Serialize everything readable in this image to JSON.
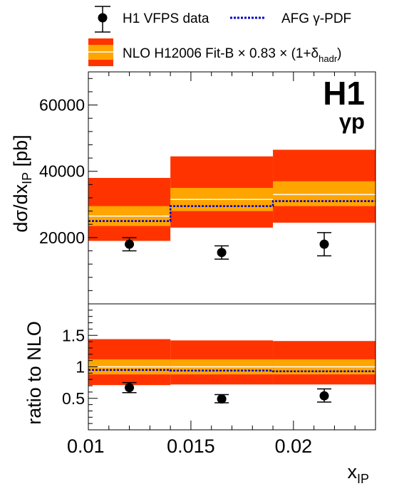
{
  "legend": {
    "data_label": "H1 VFPS data",
    "afg_label": "AFG γ-PDF",
    "nlo_label_main": "NLO H12006 Fit-B × 0.83 × (1+δ",
    "nlo_label_sub": "hadr",
    "nlo_label_close": ")"
  },
  "colors": {
    "band_outer": "#ff3300",
    "band_inner": "#ffa500",
    "central_line": "#ffffff",
    "afg_line": "#0000cc",
    "points": "#000000"
  },
  "chart_data": [
    {
      "type": "bar",
      "panel": "top",
      "brand": "H1",
      "process": "γp",
      "ylabel_main": "dσ/dx",
      "ylabel_sub": "IP",
      "ylabel_unit": " [pb]",
      "ylim": [
        0,
        70000
      ],
      "yticks": [
        {
          "v": 20000,
          "label": "20000"
        },
        {
          "v": 40000,
          "label": "40000"
        },
        {
          "v": 60000,
          "label": "60000"
        }
      ],
      "bins": [
        {
          "lo": 0.01,
          "hi": 0.014,
          "nlo": 26500,
          "scale_lo": 23500,
          "scale_hi": 29500,
          "tot_lo": 19000,
          "tot_hi": 38000,
          "afg": 25000
        },
        {
          "lo": 0.014,
          "hi": 0.019,
          "nlo": 31500,
          "scale_lo": 28000,
          "scale_hi": 35000,
          "tot_lo": 23000,
          "tot_hi": 44500,
          "afg": 29500
        },
        {
          "lo": 0.019,
          "hi": 0.024,
          "nlo": 33000,
          "scale_lo": 29500,
          "scale_hi": 37000,
          "tot_lo": 24500,
          "tot_hi": 46500,
          "afg": 31000
        }
      ],
      "points": [
        {
          "x": 0.012,
          "y": 18000,
          "err_lo": 16000,
          "err_hi": 20000
        },
        {
          "x": 0.0165,
          "y": 15500,
          "err_lo": 13500,
          "err_hi": 17500
        },
        {
          "x": 0.0215,
          "y": 18000,
          "err_lo": 14500,
          "err_hi": 21500
        }
      ]
    },
    {
      "type": "bar",
      "panel": "bottom",
      "ylabel": "ratio to NLO",
      "xlabel_main": "x",
      "xlabel_sub": "IP",
      "xlim": [
        0.01,
        0.024
      ],
      "xticks": [
        {
          "v": 0.01,
          "label": "0.01"
        },
        {
          "v": 0.015,
          "label": "0.015"
        },
        {
          "v": 0.02,
          "label": "0.02"
        }
      ],
      "ylim": [
        0,
        2
      ],
      "yticks": [
        {
          "v": 0.5,
          "label": "0.5"
        },
        {
          "v": 1,
          "label": "1"
        },
        {
          "v": 1.5,
          "label": "1.5"
        }
      ],
      "bins": [
        {
          "lo": 0.01,
          "hi": 0.014,
          "nlo": 1.0,
          "scale_lo": 0.88,
          "scale_hi": 1.12,
          "tot_lo": 0.71,
          "tot_hi": 1.44,
          "afg": 0.95
        },
        {
          "lo": 0.014,
          "hi": 0.019,
          "nlo": 1.0,
          "scale_lo": 0.88,
          "scale_hi": 1.12,
          "tot_lo": 0.72,
          "tot_hi": 1.42,
          "afg": 0.94
        },
        {
          "lo": 0.019,
          "hi": 0.024,
          "nlo": 1.0,
          "scale_lo": 0.88,
          "scale_hi": 1.12,
          "tot_lo": 0.72,
          "tot_hi": 1.41,
          "afg": 0.93
        }
      ],
      "points": [
        {
          "x": 0.012,
          "y": 0.67,
          "err_lo": 0.59,
          "err_hi": 0.75
        },
        {
          "x": 0.0165,
          "y": 0.49,
          "err_lo": 0.43,
          "err_hi": 0.56
        },
        {
          "x": 0.0215,
          "y": 0.54,
          "err_lo": 0.44,
          "err_hi": 0.65
        }
      ]
    }
  ]
}
